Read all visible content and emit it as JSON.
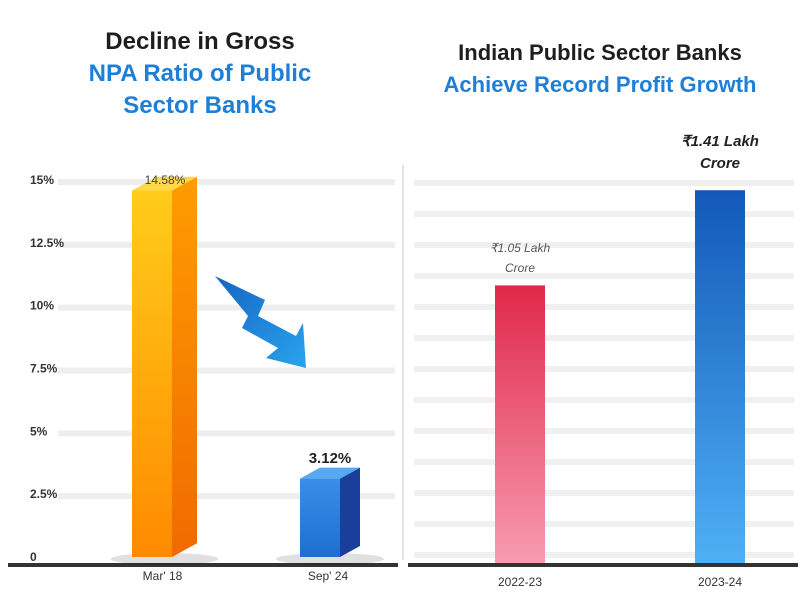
{
  "chart_data": [
    {
      "type": "bar",
      "title": "Decline in Gross",
      "subtitle": "NPA Ratio of Public Sector Banks",
      "categories": [
        "Mar' 18",
        "Sep' 24"
      ],
      "values": [
        14.58,
        3.12
      ],
      "value_labels": [
        "14.58%",
        "3.12%"
      ],
      "yticks": [
        "0",
        "2.5%",
        "5%",
        "7.5%",
        "10%",
        "12.5%",
        "15%"
      ],
      "ylim": [
        0,
        15
      ],
      "grid": true,
      "colors": [
        "#ff8a00",
        "#1565c0"
      ],
      "annotation": "downward arrow"
    },
    {
      "type": "bar",
      "title": "Indian Public Sector Banks",
      "subtitle": "Achieve Record Profit Growth",
      "categories": [
        "2022-23",
        "2023-24"
      ],
      "values": [
        1.05,
        1.41
      ],
      "value_labels": [
        "₹1.05 Lakh Crore",
        "₹1.41 Lakh Crore"
      ],
      "ylim": [
        0,
        1.6
      ],
      "grid": true,
      "colors": [
        "#e8344e",
        "#1565c0"
      ]
    }
  ],
  "left": {
    "title_line1": "Decline in Gross",
    "title_line2": "NPA Ratio of Public",
    "title_line3": "Sector Banks"
  },
  "right": {
    "title_line1": "Indian Public Sector Banks",
    "title_line2": "Achieve Record Profit Growth"
  }
}
